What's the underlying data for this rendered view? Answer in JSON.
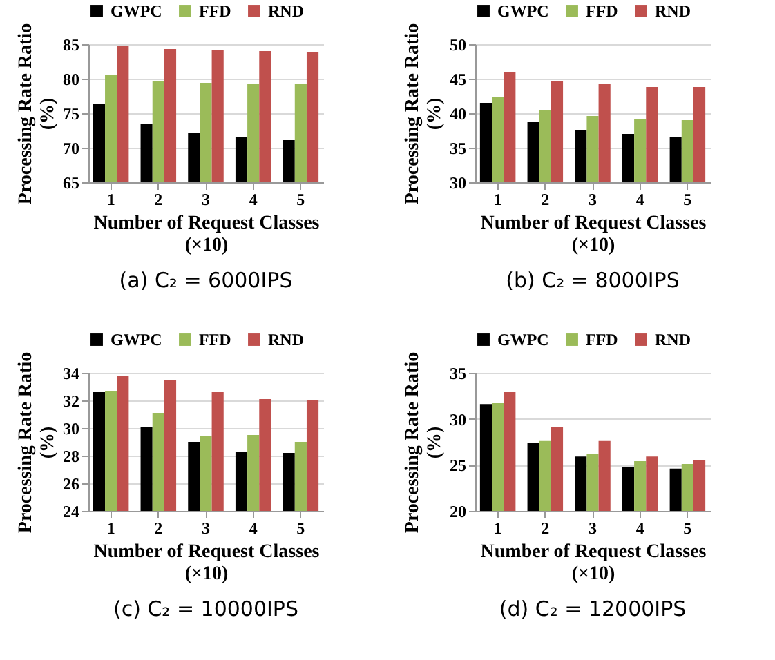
{
  "chart_data": [
    {
      "type": "bar",
      "title": "(a) C₂ = 6000IPS",
      "xlabel": "Number of Request Classes\n(×10)",
      "ylabel": "Processing Rate Ratio\n(%)",
      "categories": [
        "1",
        "2",
        "3",
        "4",
        "5"
      ],
      "ylim": [
        65,
        85
      ],
      "yticks": [
        65,
        70,
        75,
        80,
        85
      ],
      "grid": "y",
      "legend": "top",
      "series": [
        {
          "name": "GWPC",
          "color": "#000000",
          "values": [
            76.3,
            73.5,
            72.2,
            71.5,
            71.1
          ]
        },
        {
          "name": "FFD",
          "color": "#9bbb59",
          "values": [
            80.5,
            79.7,
            79.4,
            79.3,
            79.2
          ]
        },
        {
          "name": "RND",
          "color": "#c0504d",
          "values": [
            84.8,
            84.3,
            84.1,
            84.0,
            83.8
          ]
        }
      ]
    },
    {
      "type": "bar",
      "title": "(b) C₂ = 8000IPS",
      "xlabel": "Number of Request Classes\n(×10)",
      "ylabel": "Processing Rate Ratio\n(%)",
      "categories": [
        "1",
        "2",
        "3",
        "4",
        "5"
      ],
      "ylim": [
        30,
        50
      ],
      "yticks": [
        30,
        35,
        40,
        45,
        50
      ],
      "grid": "y",
      "legend": "top",
      "series": [
        {
          "name": "GWPC",
          "color": "#000000",
          "values": [
            41.5,
            38.7,
            37.6,
            37.0,
            36.6
          ]
        },
        {
          "name": "FFD",
          "color": "#9bbb59",
          "values": [
            42.4,
            40.4,
            39.6,
            39.2,
            39.0
          ]
        },
        {
          "name": "RND",
          "color": "#c0504d",
          "values": [
            45.9,
            44.7,
            44.2,
            43.8,
            43.8
          ]
        }
      ]
    },
    {
      "type": "bar",
      "title": "(c) C₂ = 10000IPS",
      "xlabel": "Number of Request Classes\n(×10)",
      "ylabel": "Processing Rate Ratio\n(%)",
      "categories": [
        "1",
        "2",
        "3",
        "4",
        "5"
      ],
      "ylim": [
        24,
        34
      ],
      "yticks": [
        24,
        26,
        28,
        30,
        32,
        34
      ],
      "grid": "y",
      "legend": "top",
      "series": [
        {
          "name": "GWPC",
          "color": "#000000",
          "values": [
            32.6,
            30.1,
            29.0,
            28.3,
            28.2
          ]
        },
        {
          "name": "FFD",
          "color": "#9bbb59",
          "values": [
            32.7,
            31.1,
            29.4,
            29.5,
            29.0
          ]
        },
        {
          "name": "RND",
          "color": "#c0504d",
          "values": [
            33.8,
            33.5,
            32.6,
            32.1,
            32.0
          ]
        }
      ]
    },
    {
      "type": "bar",
      "title": "(d) C₂ = 12000IPS",
      "xlabel": "Number of Request Classes\n(×10)",
      "ylabel": "Processing Rate Ratio\n(%)",
      "categories": [
        "1",
        "2",
        "3",
        "4",
        "5"
      ],
      "ylim": [
        20,
        35
      ],
      "yticks": [
        20,
        25,
        30,
        35
      ],
      "grid": "y",
      "legend": "top",
      "series": [
        {
          "name": "GWPC",
          "color": "#000000",
          "values": [
            31.6,
            27.4,
            25.9,
            24.8,
            24.6
          ]
        },
        {
          "name": "FFD",
          "color": "#9bbb59",
          "values": [
            31.7,
            27.6,
            26.2,
            25.4,
            25.1
          ]
        },
        {
          "name": "RND",
          "color": "#c0504d",
          "values": [
            32.9,
            29.1,
            27.6,
            25.9,
            25.5
          ]
        }
      ]
    }
  ]
}
